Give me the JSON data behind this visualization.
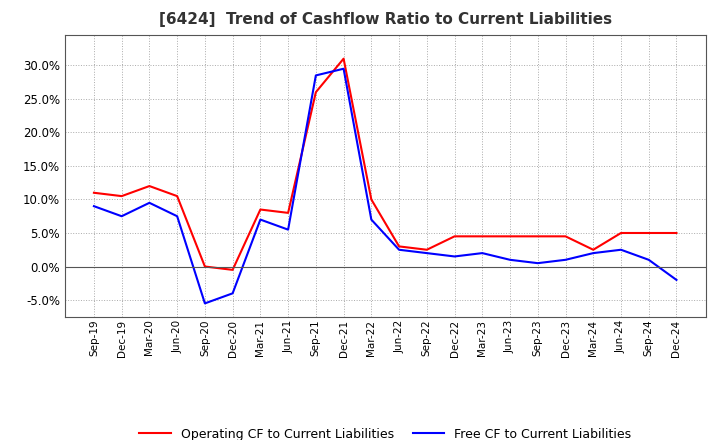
{
  "title": "[6424]  Trend of Cashflow Ratio to Current Liabilities",
  "x_labels": [
    "Sep-19",
    "Dec-19",
    "Mar-20",
    "Jun-20",
    "Sep-20",
    "Dec-20",
    "Mar-21",
    "Jun-21",
    "Sep-21",
    "Dec-21",
    "Mar-22",
    "Jun-22",
    "Sep-22",
    "Dec-22",
    "Mar-23",
    "Jun-23",
    "Sep-23",
    "Dec-23",
    "Mar-24",
    "Jun-24",
    "Sep-24",
    "Dec-24"
  ],
  "operating_cf": [
    0.11,
    0.105,
    0.12,
    0.105,
    0.0,
    -0.005,
    0.085,
    0.08,
    0.26,
    0.31,
    0.1,
    0.03,
    0.025,
    0.045,
    0.045,
    0.045,
    0.045,
    0.045,
    0.025,
    0.05,
    0.05,
    0.05
  ],
  "free_cf": [
    0.09,
    0.075,
    0.095,
    0.075,
    -0.055,
    -0.04,
    0.07,
    0.055,
    0.285,
    0.295,
    0.07,
    0.025,
    0.02,
    0.015,
    0.02,
    0.01,
    0.005,
    0.01,
    0.02,
    0.025,
    0.01,
    -0.02
  ],
  "operating_cf_color": "#ff0000",
  "free_cf_color": "#0000ff",
  "background_color": "#ffffff",
  "plot_bg_color": "#ffffff",
  "grid_color": "#aaaaaa",
  "ylim": [
    -0.075,
    0.345
  ],
  "yticks": [
    -0.05,
    0.0,
    0.05,
    0.1,
    0.15,
    0.2,
    0.25,
    0.3
  ],
  "title_fontsize": 11,
  "legend_labels": [
    "Operating CF to Current Liabilities",
    "Free CF to Current Liabilities"
  ]
}
